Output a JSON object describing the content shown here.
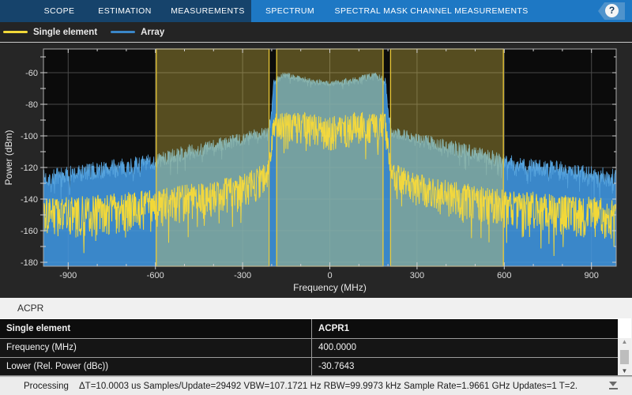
{
  "tabs": {
    "items": [
      {
        "label": "SCOPE",
        "highlighted": false
      },
      {
        "label": "ESTIMATION",
        "highlighted": false
      },
      {
        "label": "MEASUREMENTS",
        "highlighted": false
      },
      {
        "label": "SPECTRUM",
        "highlighted": true
      },
      {
        "label": "SPECTRAL MASK",
        "highlighted": true
      },
      {
        "label": "CHANNEL MEASUREMENTS",
        "highlighted": true
      }
    ],
    "help_label": "?"
  },
  "legend": {
    "items": [
      {
        "label": "Single element",
        "color": "#f2d838"
      },
      {
        "label": "Array",
        "color": "#3a87c9"
      }
    ]
  },
  "chart_data": {
    "type": "line",
    "title": "",
    "xlabel": "Frequency (MHz)",
    "ylabel": "Power (dBm)",
    "xlim": [
      -985,
      985
    ],
    "ylim": [
      -182.5,
      -45
    ],
    "xticks": [
      -900,
      -600,
      -300,
      0,
      300,
      600,
      900
    ],
    "yticks": [
      -180,
      -160,
      -140,
      -120,
      -100,
      -80,
      -60
    ],
    "x_minor_step": 100,
    "y_minor_step": 10,
    "grid": true,
    "legend_position": "top-left-bar",
    "background": "#0b0b0b",
    "grid_color": "#3c3c3c",
    "frame_color": "#ababab",
    "bands": {
      "fill": "rgba(240,214,75,0.33)",
      "border": "#ecca37",
      "ranges": [
        [
          -597,
          -209
        ],
        [
          -183,
          183
        ],
        [
          209,
          597
        ]
      ]
    },
    "noise_seed": 7,
    "points_per_trace": 1500,
    "series": [
      {
        "name": "Array",
        "style": "area",
        "color": "#3a87c9",
        "edge_color": "#56a3dd",
        "envelope_dbm": [
          [
            -985,
            -127,
            6
          ],
          [
            -900,
            -125,
            6
          ],
          [
            -800,
            -122,
            6
          ],
          [
            -700,
            -120,
            6
          ],
          [
            -600,
            -116,
            5
          ],
          [
            -500,
            -111,
            5
          ],
          [
            -400,
            -107,
            5
          ],
          [
            -300,
            -102,
            4
          ],
          [
            -250,
            -99,
            4
          ],
          [
            -212,
            -97,
            4
          ],
          [
            -200,
            -85,
            3
          ],
          [
            -193,
            -66,
            2.5
          ],
          [
            -160,
            -61.5,
            2
          ],
          [
            -120,
            -63,
            2
          ],
          [
            -60,
            -65.5,
            2
          ],
          [
            0,
            -67,
            2
          ],
          [
            60,
            -65.5,
            2
          ],
          [
            120,
            -63,
            2
          ],
          [
            160,
            -61.5,
            2
          ],
          [
            193,
            -66,
            2.5
          ],
          [
            200,
            -85,
            3
          ],
          [
            212,
            -97,
            4
          ],
          [
            250,
            -99,
            4
          ],
          [
            300,
            -102,
            4
          ],
          [
            400,
            -107,
            5
          ],
          [
            500,
            -111,
            5
          ],
          [
            600,
            -116,
            5
          ],
          [
            700,
            -120,
            6
          ],
          [
            800,
            -122,
            6
          ],
          [
            900,
            -125,
            6
          ],
          [
            985,
            -127,
            6
          ]
        ]
      },
      {
        "name": "Single element",
        "style": "line",
        "color": "#f2d838",
        "envelope_dbm": [
          [
            -985,
            -148,
            11
          ],
          [
            -900,
            -147,
            11
          ],
          [
            -800,
            -146,
            11
          ],
          [
            -700,
            -144,
            11
          ],
          [
            -600,
            -142,
            10
          ],
          [
            -500,
            -139,
            10
          ],
          [
            -400,
            -136,
            10
          ],
          [
            -300,
            -131,
            9
          ],
          [
            -250,
            -127,
            9
          ],
          [
            -212,
            -122,
            8
          ],
          [
            -203,
            -112,
            7
          ],
          [
            -196,
            -97,
            6
          ],
          [
            -190,
            -91,
            7
          ],
          [
            -150,
            -91,
            8
          ],
          [
            -100,
            -92,
            9
          ],
          [
            -50,
            -93.5,
            9
          ],
          [
            0,
            -95,
            9
          ],
          [
            50,
            -93.5,
            9
          ],
          [
            100,
            -92,
            9
          ],
          [
            150,
            -91,
            8
          ],
          [
            190,
            -91,
            7
          ],
          [
            196,
            -97,
            6
          ],
          [
            203,
            -112,
            7
          ],
          [
            212,
            -122,
            8
          ],
          [
            250,
            -127,
            9
          ],
          [
            300,
            -131,
            9
          ],
          [
            400,
            -136,
            10
          ],
          [
            500,
            -139,
            10
          ],
          [
            600,
            -142,
            10
          ],
          [
            700,
            -144,
            11
          ],
          [
            800,
            -146,
            11
          ],
          [
            900,
            -147,
            11
          ],
          [
            985,
            -148,
            11
          ]
        ]
      }
    ]
  },
  "acpr": {
    "title": "ACPR",
    "table": {
      "columns": [
        "Single element",
        "ACPR1"
      ],
      "rows": [
        [
          "Frequency (MHz)",
          "400.0000"
        ],
        [
          "Lower (Rel. Power (dBc))",
          "-30.7643"
        ]
      ]
    }
  },
  "status": {
    "state": "Processing",
    "info": "ΔT=10.0003 us  Samples/Update=29492  VBW=107.1721 Hz  RBW=99.9973 kHz  Sample Rate=1.9661 GHz  Updates=1  T=2."
  }
}
